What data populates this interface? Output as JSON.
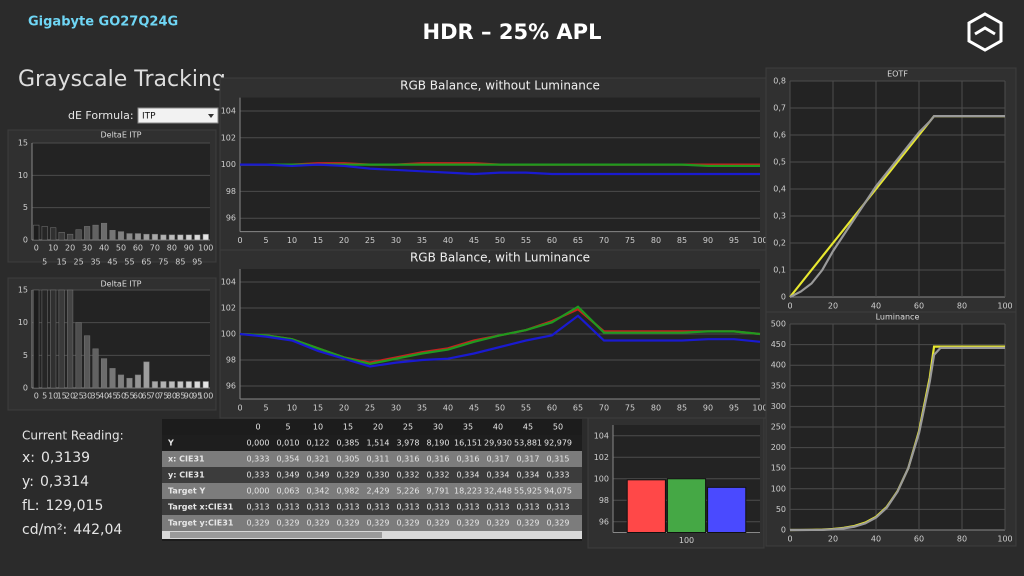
{
  "header": {
    "device": "Gigabyte GO27Q24G",
    "title": "HDR – 25% APL"
  },
  "page_title": "Grayscale Tracking",
  "de_formula": {
    "label": "dE Formula:",
    "value": "ITP"
  },
  "current_reading": {
    "title": "Current Reading:",
    "items": [
      {
        "label": "x:",
        "value": "0,3139"
      },
      {
        "label": "y:",
        "value": "0,3314"
      },
      {
        "label": "fL:",
        "value": "129,015"
      },
      {
        "label": "cd/m²:",
        "value": "442,04"
      }
    ]
  },
  "table": {
    "columns": [
      "0",
      "5",
      "10",
      "15",
      "20",
      "25",
      "30",
      "35",
      "40",
      "45",
      "50"
    ],
    "rows": [
      {
        "label": "Y",
        "values": [
          "0,000",
          "0,010",
          "0,122",
          "0,385",
          "1,514",
          "3,978",
          "8,190",
          "16,151",
          "29,930",
          "53,881",
          "92,979"
        ]
      },
      {
        "label": "x: CIE31",
        "values": [
          "0,333",
          "0,354",
          "0,321",
          "0,305",
          "0,311",
          "0,316",
          "0,316",
          "0,316",
          "0,317",
          "0,317",
          "0,315"
        ]
      },
      {
        "label": "y: CIE31",
        "values": [
          "0,333",
          "0,349",
          "0,349",
          "0,329",
          "0,330",
          "0,332",
          "0,332",
          "0,334",
          "0,334",
          "0,334",
          "0,333"
        ]
      },
      {
        "label": "Target Y",
        "values": [
          "0,000",
          "0,063",
          "0,342",
          "0,982",
          "2,429",
          "5,226",
          "9,791",
          "18,223",
          "32,448",
          "55,925",
          "94,075"
        ]
      },
      {
        "label": "Target x:CIE31",
        "values": [
          "0,313",
          "0,313",
          "0,313",
          "0,313",
          "0,313",
          "0,313",
          "0,313",
          "0,313",
          "0,313",
          "0,313",
          "0,313"
        ]
      },
      {
        "label": "Target y:CIE31",
        "values": [
          "0,329",
          "0,329",
          "0,329",
          "0,329",
          "0,329",
          "0,329",
          "0,329",
          "0,329",
          "0,329",
          "0,329",
          "0,329"
        ]
      }
    ]
  },
  "chart_data": [
    {
      "type": "bar",
      "title": "DeltaE ITP",
      "staggered_labels": true,
      "grid": "y",
      "categories": [
        "0",
        "5",
        "10",
        "15",
        "20",
        "25",
        "30",
        "35",
        "40",
        "45",
        "50",
        "55",
        "60",
        "65",
        "70",
        "75",
        "80",
        "85",
        "90",
        "95",
        "100"
      ],
      "values": [
        2.3,
        2.1,
        1.9,
        1.2,
        0.9,
        1.6,
        2.1,
        2.3,
        2.6,
        1.5,
        1.3,
        1.0,
        1.0,
        0.9,
        0.9,
        0.8,
        0.8,
        0.8,
        0.8,
        0.8,
        0.9
      ],
      "colors": [
        "#1c1c1c",
        "#262626",
        "#303030",
        "#3a3a3a",
        "#444444",
        "#4e4e4e",
        "#585858",
        "#626262",
        "#6c6c6c",
        "#767676",
        "#808080",
        "#8a8a8a",
        "#949494",
        "#9e9e9e",
        "#a8a8a8",
        "#b2b2b2",
        "#bcbcbc",
        "#c6c6c6",
        "#d0d0d0",
        "#dadada",
        "#e4e4e4"
      ],
      "ylim": [
        0,
        15
      ],
      "yticks": [
        0,
        5,
        10,
        15
      ]
    },
    {
      "type": "bar",
      "title": "DeltaE ITP",
      "staggered_labels": false,
      "grid": "y",
      "categories": [
        "0",
        "5",
        "10",
        "15",
        "20",
        "25",
        "30",
        "35",
        "40",
        "45",
        "50",
        "55",
        "60",
        "65",
        "70",
        "75",
        "80",
        "85",
        "90",
        "95",
        "100"
      ],
      "values": [
        15,
        15,
        15,
        15,
        15,
        10,
        8,
        6,
        4.5,
        3,
        2,
        1.5,
        2,
        4,
        1,
        1,
        1,
        1,
        1,
        1,
        1
      ],
      "colors": [
        "#1c1c1c",
        "#262626",
        "#303030",
        "#3a3a3a",
        "#444444",
        "#4e4e4e",
        "#585858",
        "#626262",
        "#6c6c6c",
        "#767676",
        "#808080",
        "#8a8a8a",
        "#949494",
        "#9e9e9e",
        "#a8a8a8",
        "#b2b2b2",
        "#bcbcbc",
        "#c6c6c6",
        "#d0d0d0",
        "#dadada",
        "#e4e4e4"
      ],
      "ylim": [
        0,
        15
      ],
      "yticks": [
        0,
        5,
        10,
        15
      ]
    },
    {
      "type": "line",
      "title": "RGB Balance, without Luminance",
      "grid": "y",
      "x": [
        0,
        5,
        10,
        15,
        20,
        25,
        30,
        35,
        40,
        45,
        50,
        55,
        60,
        65,
        70,
        75,
        80,
        85,
        90,
        95,
        100
      ],
      "series": [
        {
          "name": "R",
          "color": "#c62020",
          "values": [
            100,
            100,
            100,
            100.1,
            100.1,
            100,
            100,
            100.1,
            100.1,
            100.1,
            100,
            100,
            100,
            100,
            100,
            100,
            100,
            100,
            100,
            100,
            100
          ]
        },
        {
          "name": "G",
          "color": "#1f9a1f",
          "values": [
            100,
            100,
            100,
            100,
            100,
            100,
            100,
            100,
            100,
            100,
            100,
            100,
            100,
            100,
            100,
            100,
            100,
            100,
            99.9,
            99.9,
            99.9
          ]
        },
        {
          "name": "B",
          "color": "#1a1ad0",
          "values": [
            100,
            100,
            99.9,
            100,
            99.9,
            99.7,
            99.6,
            99.5,
            99.4,
            99.3,
            99.4,
            99.4,
            99.3,
            99.3,
            99.3,
            99.3,
            99.3,
            99.3,
            99.3,
            99.3,
            99.3
          ]
        }
      ],
      "xlim": [
        0,
        100
      ],
      "xticks": [
        0,
        5,
        10,
        15,
        20,
        25,
        30,
        35,
        40,
        45,
        50,
        55,
        60,
        65,
        70,
        75,
        80,
        85,
        90,
        95,
        100
      ],
      "ylim": [
        95,
        105
      ],
      "yticks": [
        96,
        98,
        100,
        102,
        104
      ]
    },
    {
      "type": "line",
      "title": "RGB Balance, with Luminance",
      "grid": "y",
      "x": [
        0,
        5,
        10,
        15,
        20,
        25,
        30,
        35,
        40,
        45,
        50,
        55,
        60,
        65,
        70,
        75,
        80,
        85,
        90,
        95,
        100
      ],
      "series": [
        {
          "name": "R",
          "color": "#c62020",
          "values": [
            100,
            99.9,
            99.6,
            98.9,
            98.2,
            97.8,
            98.2,
            98.6,
            98.9,
            99.5,
            99.9,
            100.3,
            101,
            101.9,
            100.2,
            100.2,
            100.2,
            100.2,
            100.2,
            100.2,
            100
          ]
        },
        {
          "name": "G",
          "color": "#1f9a1f",
          "values": [
            100,
            99.9,
            99.6,
            98.9,
            98.2,
            97.7,
            98.1,
            98.5,
            98.8,
            99.4,
            99.9,
            100.3,
            100.9,
            102.1,
            100.1,
            100.1,
            100.1,
            100.1,
            100.2,
            100.2,
            100
          ]
        },
        {
          "name": "B",
          "color": "#1a1ad0",
          "values": [
            100,
            99.8,
            99.5,
            98.7,
            98.1,
            97.5,
            97.8,
            98,
            98.1,
            98.5,
            99,
            99.5,
            99.9,
            101.4,
            99.5,
            99.5,
            99.5,
            99.5,
            99.6,
            99.6,
            99.4
          ]
        }
      ],
      "xlim": [
        0,
        100
      ],
      "xticks": [
        0,
        5,
        10,
        15,
        20,
        25,
        30,
        35,
        40,
        45,
        50,
        55,
        60,
        65,
        70,
        75,
        80,
        85,
        90,
        95,
        100
      ],
      "ylim": [
        95,
        105
      ],
      "yticks": [
        96,
        98,
        100,
        102,
        104
      ]
    },
    {
      "type": "bar",
      "grid": "y",
      "categories": [
        "100"
      ],
      "series": [
        {
          "name": "R",
          "color": "#ff4848",
          "values": [
            99.9
          ]
        },
        {
          "name": "G",
          "color": "#45a845",
          "values": [
            100
          ]
        },
        {
          "name": "B",
          "color": "#4a4aff",
          "values": [
            99.2
          ]
        }
      ],
      "ylim": [
        95,
        105
      ],
      "yticks": [
        96,
        98,
        100,
        102,
        104
      ]
    },
    {
      "type": "line",
      "title": "EOTF",
      "grid": "both",
      "x": [
        0,
        5,
        10,
        15,
        20,
        25,
        30,
        35,
        40,
        45,
        50,
        55,
        60,
        65,
        67,
        70,
        75,
        80,
        85,
        90,
        95,
        100
      ],
      "series": [
        {
          "name": "Target",
          "color": "#e8e830",
          "values": [
            0,
            0.05,
            0.1,
            0.15,
            0.2,
            0.25,
            0.3,
            0.35,
            0.4,
            0.45,
            0.5,
            0.55,
            0.6,
            0.65,
            0.67,
            0.67,
            0.67,
            0.67,
            0.67,
            0.67,
            0.67,
            0.67
          ]
        },
        {
          "name": "Measured",
          "color": "#9a9a9a",
          "values": [
            0,
            0.02,
            0.05,
            0.1,
            0.17,
            0.23,
            0.29,
            0.35,
            0.41,
            0.46,
            0.51,
            0.56,
            0.61,
            0.65,
            0.67,
            0.67,
            0.67,
            0.67,
            0.67,
            0.67,
            0.67,
            0.67
          ]
        }
      ],
      "xlim": [
        0,
        100
      ],
      "xticks": [
        0,
        20,
        40,
        60,
        80,
        100
      ],
      "ylim": [
        0,
        0.8
      ],
      "yticks": [
        0,
        {
          "value": 0.1,
          "label": "0,1"
        },
        {
          "value": 0.2,
          "label": "0,2"
        },
        {
          "value": 0.3,
          "label": "0,3"
        },
        {
          "value": 0.4,
          "label": "0,4"
        },
        {
          "value": 0.5,
          "label": "0,5"
        },
        {
          "value": 0.6,
          "label": "0,6"
        },
        {
          "value": 0.7,
          "label": "0,7"
        },
        {
          "value": 0.8,
          "label": "0,8"
        }
      ]
    },
    {
      "type": "line",
      "title": "Luminance",
      "grid": "both",
      "x": [
        0,
        5,
        10,
        15,
        20,
        25,
        30,
        35,
        40,
        45,
        50,
        55,
        60,
        65,
        67,
        70,
        75,
        80,
        85,
        90,
        95,
        100
      ],
      "series": [
        {
          "name": "Target",
          "color": "#e8e830",
          "values": [
            0,
            0.1,
            0.4,
            1,
            2.4,
            5.2,
            9.8,
            18,
            32,
            56,
            94,
            150,
            240,
            370,
            445,
            445,
            445,
            445,
            445,
            445,
            445,
            445
          ]
        },
        {
          "name": "Measured",
          "color": "#9a9a9a",
          "values": [
            0,
            0.01,
            0.1,
            0.4,
            1.5,
            4,
            8.2,
            16,
            30,
            54,
            93,
            150,
            235,
            360,
            425,
            442,
            442,
            442,
            442,
            442,
            442,
            442
          ]
        }
      ],
      "xlim": [
        0,
        100
      ],
      "xticks": [
        0,
        20,
        40,
        60,
        80,
        100
      ],
      "ylim": [
        0,
        500
      ],
      "yticks": [
        0,
        50,
        100,
        150,
        200,
        250,
        300,
        350,
        400,
        450,
        500
      ]
    }
  ]
}
